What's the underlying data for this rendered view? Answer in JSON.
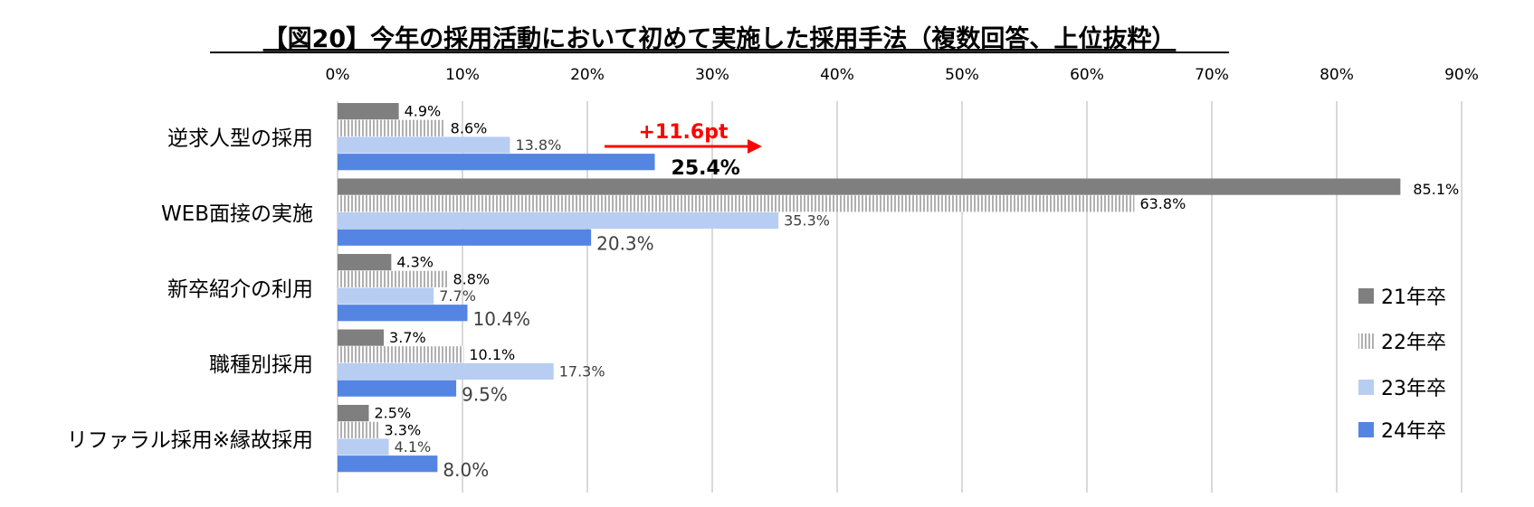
{
  "chart_data": {
    "type": "bar",
    "orientation": "horizontal",
    "title": "【図20】今年の採用活動において初めて実施した採用手法（複数回答、上位抜粋）",
    "xlabel": "",
    "ylabel": "",
    "xlim": [
      0,
      90
    ],
    "x_ticks": [
      "0%",
      "10%",
      "20%",
      "30%",
      "40%",
      "50%",
      "60%",
      "70%",
      "80%",
      "90%"
    ],
    "grid": true,
    "legend_position": "right",
    "categories": [
      "逆求人型の採用",
      "WEB面接の実施",
      "新卒紹介の利用",
      "職種別採用",
      "リファラル採用※縁故採用"
    ],
    "series": [
      {
        "name": "21年卒",
        "color": "#7f7f7f",
        "pattern": "solid",
        "values": [
          4.9,
          85.1,
          4.3,
          3.7,
          2.5
        ],
        "labels": [
          "4.9%",
          "85.1%",
          "4.3%",
          "3.7%",
          "2.5%"
        ]
      },
      {
        "name": "22年卒",
        "color": "#bfbfbf",
        "pattern": "vertical-stripes",
        "values": [
          8.6,
          63.8,
          8.8,
          10.1,
          3.3
        ],
        "labels": [
          "8.6%",
          "63.8%",
          "8.8%",
          "10.1%",
          "3.3%"
        ]
      },
      {
        "name": "23年卒",
        "color": "#b8cdf2",
        "pattern": "solid",
        "values": [
          13.8,
          35.3,
          7.7,
          17.3,
          4.1
        ],
        "labels": [
          "13.8%",
          "35.3%",
          "7.7%",
          "17.3%",
          "4.1%"
        ]
      },
      {
        "name": "24年卒",
        "color": "#5585e3",
        "pattern": "solid",
        "values": [
          25.4,
          20.3,
          10.4,
          9.5,
          8.0
        ],
        "labels": [
          "25.4%",
          "20.3%",
          "10.4%",
          "9.5%",
          "8.0%"
        ]
      }
    ],
    "annotations": [
      {
        "text": "+11.6pt",
        "color": "#ff0000",
        "category": "逆求人型の採用",
        "type": "arrow"
      }
    ]
  }
}
